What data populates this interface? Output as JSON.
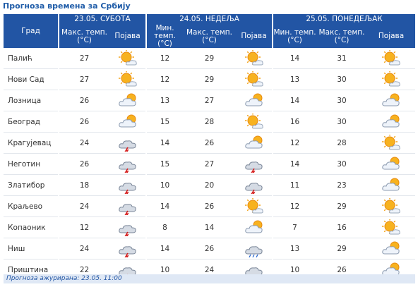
{
  "title": "Прогноза времена за Србију",
  "table": {
    "days": [
      "23.05. СУБОТА",
      "24.05. НЕДЕЉА",
      "25.05. ПОНЕДЕЉАК"
    ],
    "columns": [
      "Град",
      "Макс. темп.\n(°C)",
      "Појава",
      "Мин. темп.\n(°C)",
      "Макс. темп.\n(°C)",
      "Појава",
      "Мин. темп.\n(°C)",
      "Макс. темп.\n(°C)",
      "Појава"
    ],
    "rows": [
      [
        "Палић",
        27,
        12,
        29,
        14,
        31
      ],
      [
        "Нови Сад",
        27,
        12,
        29,
        13,
        30
      ],
      [
        "Лозница",
        26,
        13,
        27,
        14,
        30
      ],
      [
        "Београд",
        26,
        15,
        28,
        16,
        30
      ],
      [
        "Крагујевац",
        24,
        14,
        26,
        12,
        28
      ],
      [
        "Неготин",
        26,
        15,
        27,
        14,
        30
      ],
      [
        "Златибор",
        18,
        10,
        20,
        11,
        23
      ],
      [
        "Краљево",
        24,
        14,
        26,
        12,
        29
      ],
      [
        "Копаоник",
        12,
        8,
        14,
        7,
        16
      ],
      [
        "Ниш",
        24,
        14,
        26,
        13,
        29
      ],
      [
        "Приштина",
        22,
        10,
        24,
        10,
        26
      ]
    ]
  },
  "footer": "Прогноза ажурирана: 23.05. 11:00"
}
